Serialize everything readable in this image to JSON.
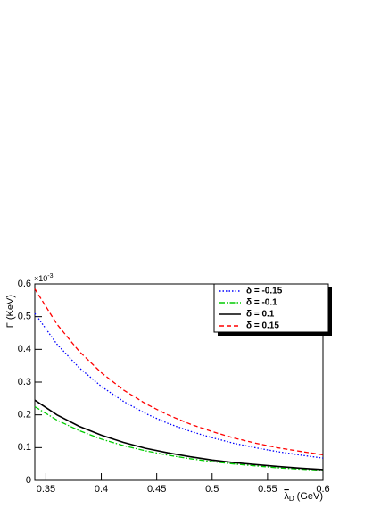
{
  "chart_data": {
    "type": "line",
    "y_label": "Γ (KeV)",
    "y_multiplier_base": "×10",
    "y_multiplier_exponent": "-3",
    "x_label_symbol": "λ",
    "x_label_subscript": "D",
    "x_label_unit": "(GeV)",
    "x": [
      0.34,
      0.36,
      0.38,
      0.4,
      0.42,
      0.44,
      0.46,
      0.48,
      0.5,
      0.52,
      0.54,
      0.56,
      0.58,
      0.6
    ],
    "series": [
      {
        "name": "δ = -0.15",
        "color": "#0000ff",
        "style": "dotted",
        "values": [
          0.51,
          0.416,
          0.344,
          0.287,
          0.241,
          0.204,
          0.174,
          0.15,
          0.13,
          0.113,
          0.099,
          0.087,
          0.077,
          0.068
        ]
      },
      {
        "name": "δ = -0.1",
        "color": "#00cc00",
        "style": "dashdot",
        "values": [
          0.225,
          0.184,
          0.152,
          0.126,
          0.106,
          0.09,
          0.077,
          0.066,
          0.057,
          0.05,
          0.044,
          0.038,
          0.034,
          0.031
        ]
      },
      {
        "name": "δ = 0.1",
        "color": "#000000",
        "style": "solid",
        "values": [
          0.245,
          0.2,
          0.165,
          0.138,
          0.116,
          0.098,
          0.084,
          0.072,
          0.062,
          0.054,
          0.048,
          0.042,
          0.037,
          0.033
        ]
      },
      {
        "name": "δ = 0.15",
        "color": "#ff0000",
        "style": "dashed",
        "values": [
          0.585,
          0.477,
          0.394,
          0.329,
          0.276,
          0.234,
          0.2,
          0.172,
          0.149,
          0.129,
          0.113,
          0.099,
          0.088,
          0.078
        ]
      }
    ],
    "xlim": [
      0.34,
      0.6
    ],
    "ylim": [
      0,
      0.6
    ],
    "xticks": [
      0.35,
      0.4,
      0.45,
      0.5,
      0.55,
      0.6
    ],
    "yticks": [
      0,
      0.1,
      0.2,
      0.3,
      0.4,
      0.5,
      0.6
    ],
    "legend": "top-right"
  }
}
